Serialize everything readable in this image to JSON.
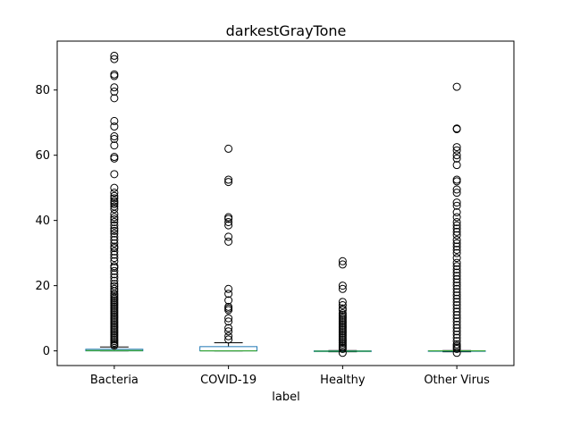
{
  "chart_data": {
    "type": "box",
    "title": "darkestGrayTone",
    "xlabel": "label",
    "ylabel": "",
    "ylim": [
      -4.5,
      95
    ],
    "yticks": [
      0,
      20,
      40,
      60,
      80
    ],
    "categories": [
      "Bacteria",
      "COVID-19",
      "Healthy",
      "Other Virus"
    ],
    "boxes": [
      {
        "category": "Bacteria",
        "whisker_low": 0,
        "q1": 0,
        "median": 0.1,
        "q3": 0.5,
        "whisker_high": 1.2,
        "outliers": [
          90.5,
          89.5,
          84.8,
          84.3,
          80.8,
          79.5,
          77.5,
          70.5,
          68.8,
          65.8,
          65,
          63,
          59.5,
          59,
          54.2,
          50,
          48.5,
          47.5,
          46.8,
          46,
          45.5,
          45,
          44.3,
          43.5,
          42,
          41,
          40.3,
          39.5,
          38.5,
          37.5,
          36.8,
          36,
          35,
          34,
          33,
          32,
          31.5,
          30.5,
          29.5,
          28.5,
          27.5,
          26,
          25.5,
          24.5,
          23.5,
          22.5,
          21.5,
          20.5,
          19.8,
          19,
          18.3,
          17.5,
          17,
          16.5,
          16,
          15.5,
          15,
          14.5,
          14,
          13.5,
          13,
          12.5,
          12,
          11.5,
          11,
          10.5,
          10,
          9.5,
          9,
          8.5,
          8,
          7.5,
          7,
          6.5,
          6,
          5.5,
          5,
          4.5,
          4,
          3.5,
          3,
          2.5,
          2,
          1.6
        ]
      },
      {
        "category": "COVID-19",
        "whisker_low": 0,
        "q1": 0,
        "median": 0,
        "q3": 1.3,
        "whisker_high": 2.5,
        "outliers": [
          62,
          52.5,
          51.8,
          41,
          40.5,
          39.5,
          38.5,
          35,
          33.5,
          19,
          17.5,
          15.5,
          13.5,
          13,
          12.5,
          10,
          9,
          7,
          6,
          4.5,
          3.5
        ]
      },
      {
        "category": "Healthy",
        "whisker_low": -0.3,
        "q1": -0.2,
        "median": -0.1,
        "q3": 0,
        "whisker_high": 0.1,
        "outliers": [
          27.5,
          26.5,
          20,
          19,
          15,
          14,
          13,
          12.5,
          11.5,
          11,
          10.5,
          10,
          9.5,
          9,
          8.5,
          8,
          7.5,
          7,
          6.5,
          6,
          5.5,
          5,
          4.5,
          4,
          3.5,
          3,
          2.5,
          2,
          1.5,
          1,
          0.6,
          -0.6
        ]
      },
      {
        "category": "Other Virus",
        "whisker_low": -0.3,
        "q1": -0.1,
        "median": 0,
        "q3": 0,
        "whisker_high": 0.1,
        "outliers": [
          81,
          68,
          68.2,
          62.5,
          61.5,
          60,
          59,
          57,
          52.5,
          52,
          49.5,
          48.5,
          45.5,
          44.5,
          42.5,
          41,
          39.5,
          38.5,
          37.5,
          36.5,
          35.5,
          34,
          33,
          32,
          31,
          30,
          28.5,
          27,
          26,
          25,
          24,
          23,
          22,
          21,
          20,
          19,
          18,
          17,
          16,
          15,
          14,
          13,
          12,
          11,
          10,
          9,
          8,
          7,
          6,
          5,
          4,
          3,
          2,
          1.5,
          1,
          0.6,
          -0.6
        ]
      }
    ],
    "colors": {
      "box": "#1f77b4",
      "median": "#2ca02c",
      "whisker": "#000000",
      "outlier_edge": "#000000"
    },
    "grid": false,
    "legend": "none"
  }
}
